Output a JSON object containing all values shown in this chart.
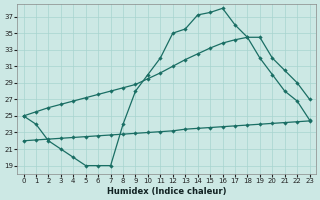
{
  "xlabel": "Humidex (Indice chaleur)",
  "bg_color": "#cce8e4",
  "line_color": "#1a6e64",
  "grid_color": "#a8d4cf",
  "xlim": [
    -0.5,
    23.5
  ],
  "ylim": [
    18,
    38.5
  ],
  "yticks": [
    19,
    21,
    23,
    25,
    27,
    29,
    31,
    33,
    35,
    37
  ],
  "xticks": [
    0,
    1,
    2,
    3,
    4,
    5,
    6,
    7,
    8,
    9,
    10,
    11,
    12,
    13,
    14,
    15,
    16,
    17,
    18,
    19,
    20,
    21,
    22,
    23
  ],
  "c1_x": [
    0,
    1,
    2,
    3,
    4,
    5,
    6,
    7,
    8,
    9,
    10,
    11,
    12,
    13,
    14,
    15,
    16,
    17,
    18,
    19,
    20,
    21,
    22,
    23
  ],
  "c1_y": [
    25,
    24,
    22,
    21,
    20,
    19,
    19,
    19,
    24,
    28,
    30,
    32,
    35,
    35.5,
    37.2,
    37.5,
    38,
    36,
    34.5,
    32,
    30,
    28,
    26.8,
    24.5
  ],
  "c2_x": [
    0,
    1,
    2,
    3,
    4,
    5,
    6,
    7,
    8,
    9,
    10,
    11,
    12,
    13,
    14,
    15,
    16,
    17,
    18,
    19,
    20,
    21,
    22,
    23
  ],
  "c2_y": [
    25,
    25.5,
    26,
    26.4,
    26.8,
    27.2,
    27.6,
    28.0,
    28.4,
    28.8,
    29.5,
    30.2,
    31.0,
    31.8,
    32.5,
    33.2,
    33.8,
    34.2,
    34.5,
    34.5,
    32.0,
    30.5,
    29.0,
    27.0
  ],
  "c3_x": [
    0,
    1,
    2,
    3,
    4,
    5,
    6,
    7,
    8,
    9,
    10,
    11,
    12,
    13,
    14,
    15,
    16,
    17,
    18,
    19,
    20,
    21,
    22,
    23
  ],
  "c3_y": [
    22.0,
    22.1,
    22.2,
    22.3,
    22.4,
    22.5,
    22.6,
    22.7,
    22.8,
    22.9,
    23.0,
    23.1,
    23.2,
    23.4,
    23.5,
    23.6,
    23.7,
    23.8,
    23.9,
    24.0,
    24.1,
    24.2,
    24.3,
    24.4
  ]
}
